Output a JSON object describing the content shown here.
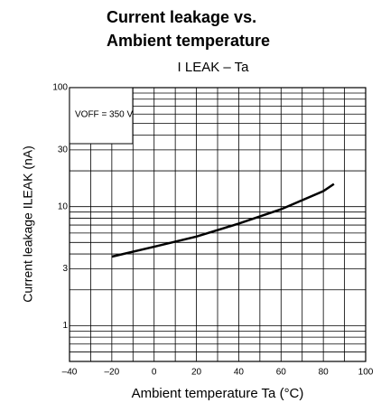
{
  "chart_data": {
    "type": "line",
    "title": [
      "Current leakage vs.",
      "Ambient temperature"
    ],
    "subtitle": "I LEAK – Ta",
    "x_label": "Ambient temperature Ta (°C)",
    "y_label": "Current leakage ILEAK (nA)",
    "annotation": "VOFF = 350 V",
    "x": [
      -20,
      0,
      20,
      40,
      60,
      80,
      85
    ],
    "series": [
      {
        "name": "ILEAK",
        "color": "#000000",
        "values": [
          3.8,
          4.6,
          5.6,
          7.2,
          9.5,
          13.5,
          15.5
        ]
      }
    ],
    "xlim": [
      -40,
      100
    ],
    "xticks": [
      {
        "value": -40,
        "label": "–40"
      },
      {
        "value": -20,
        "label": "–20"
      },
      0,
      20,
      40,
      60,
      80,
      100
    ],
    "x_minor_ticks": [
      -30,
      -10,
      10,
      30,
      50,
      70,
      90
    ],
    "ylim": [
      0.5,
      100
    ],
    "yticks": [
      1,
      3,
      10,
      30,
      100
    ],
    "y_minor_ticks": [
      0.6,
      0.7,
      0.8,
      0.9,
      2,
      4,
      5,
      6,
      7,
      8,
      9,
      20,
      40,
      50,
      60,
      70,
      80,
      90
    ],
    "log_y": true,
    "grid": true
  }
}
